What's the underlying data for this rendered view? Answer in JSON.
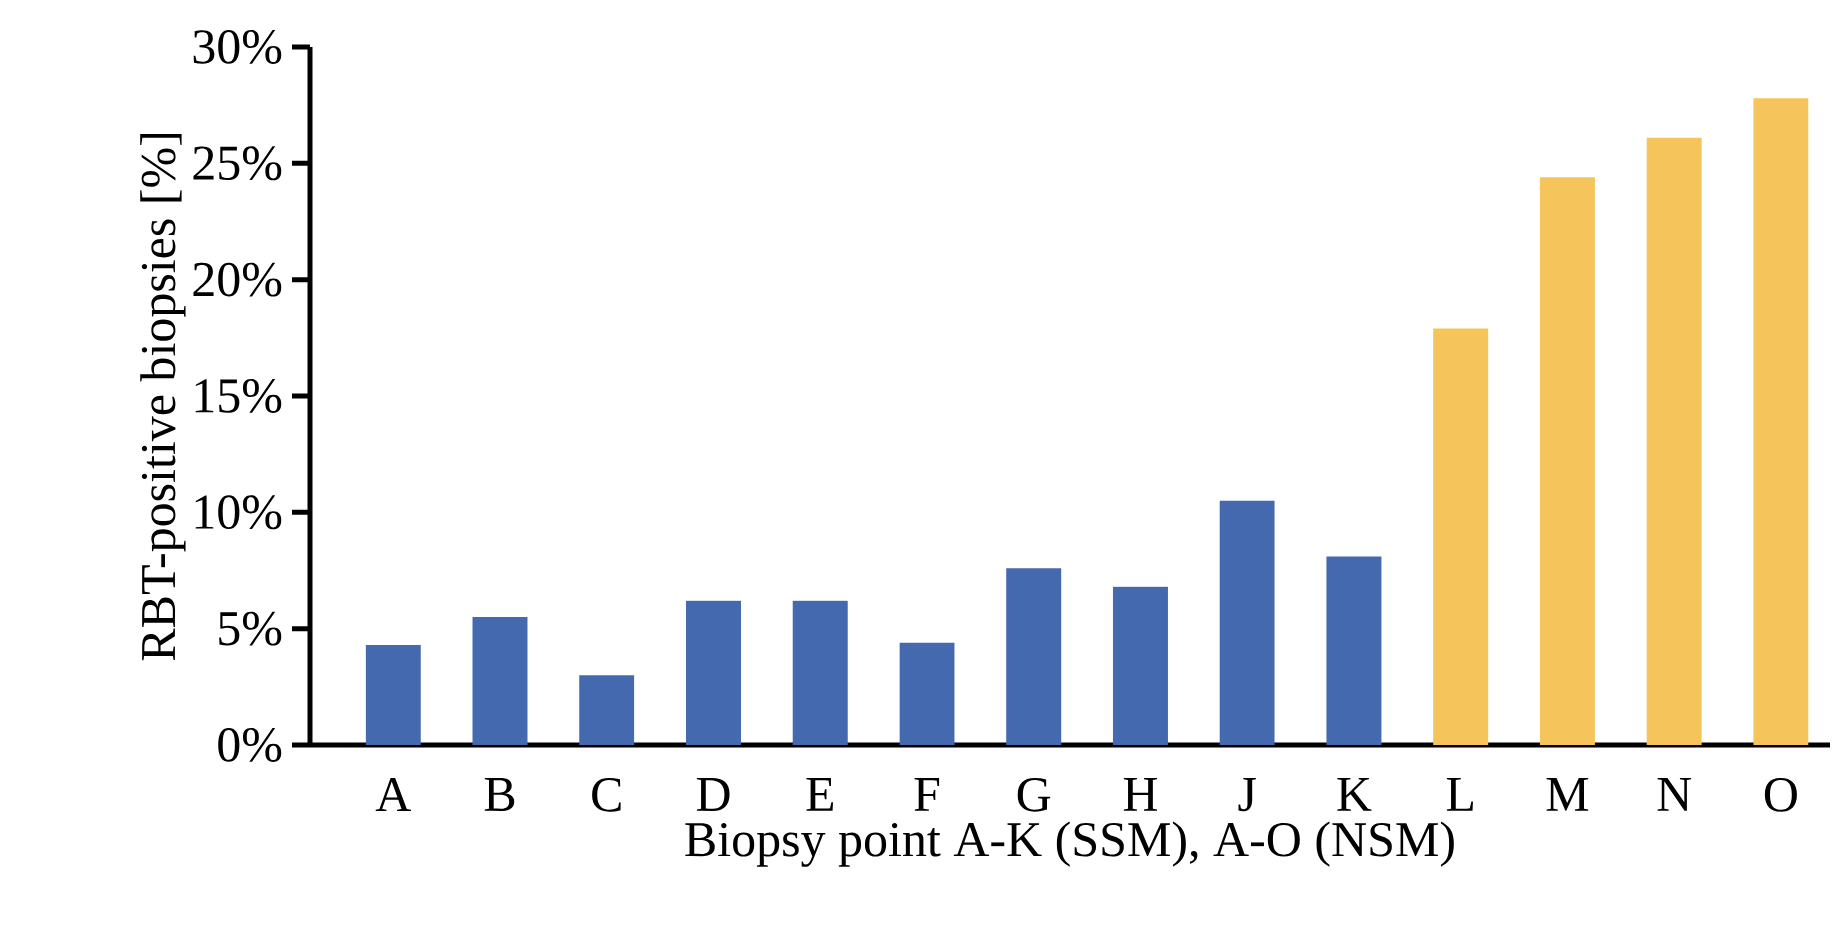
{
  "chart_data": {
    "type": "bar",
    "xlabel": "Biopsy point A-K (SSM), A-O (NSM)",
    "ylabel": "RBT-positive biopsies [%]",
    "categories": [
      "A",
      "B",
      "C",
      "D",
      "E",
      "F",
      "G",
      "H",
      "J",
      "K",
      "L",
      "M",
      "N",
      "O"
    ],
    "values": [
      4.3,
      5.5,
      3.0,
      6.2,
      6.2,
      4.4,
      7.6,
      6.8,
      10.5,
      8.1,
      17.9,
      24.4,
      26.1,
      27.8
    ],
    "colors": [
      "#4569ae",
      "#4569ae",
      "#4569ae",
      "#4569ae",
      "#4569ae",
      "#4569ae",
      "#4569ae",
      "#4569ae",
      "#4569ae",
      "#4569ae",
      "#f5c55c",
      "#f5c55c",
      "#f5c55c",
      "#f5c55c"
    ],
    "ylim": [
      0,
      30
    ],
    "yticks": [
      {
        "value": 0,
        "label": "0%"
      },
      {
        "value": 5,
        "label": "5%"
      },
      {
        "value": 10,
        "label": "10%"
      },
      {
        "value": 15,
        "label": "15%"
      },
      {
        "value": 20,
        "label": "20%"
      },
      {
        "value": 25,
        "label": "25%"
      },
      {
        "value": 30,
        "label": "30%"
      }
    ],
    "grid": false
  }
}
